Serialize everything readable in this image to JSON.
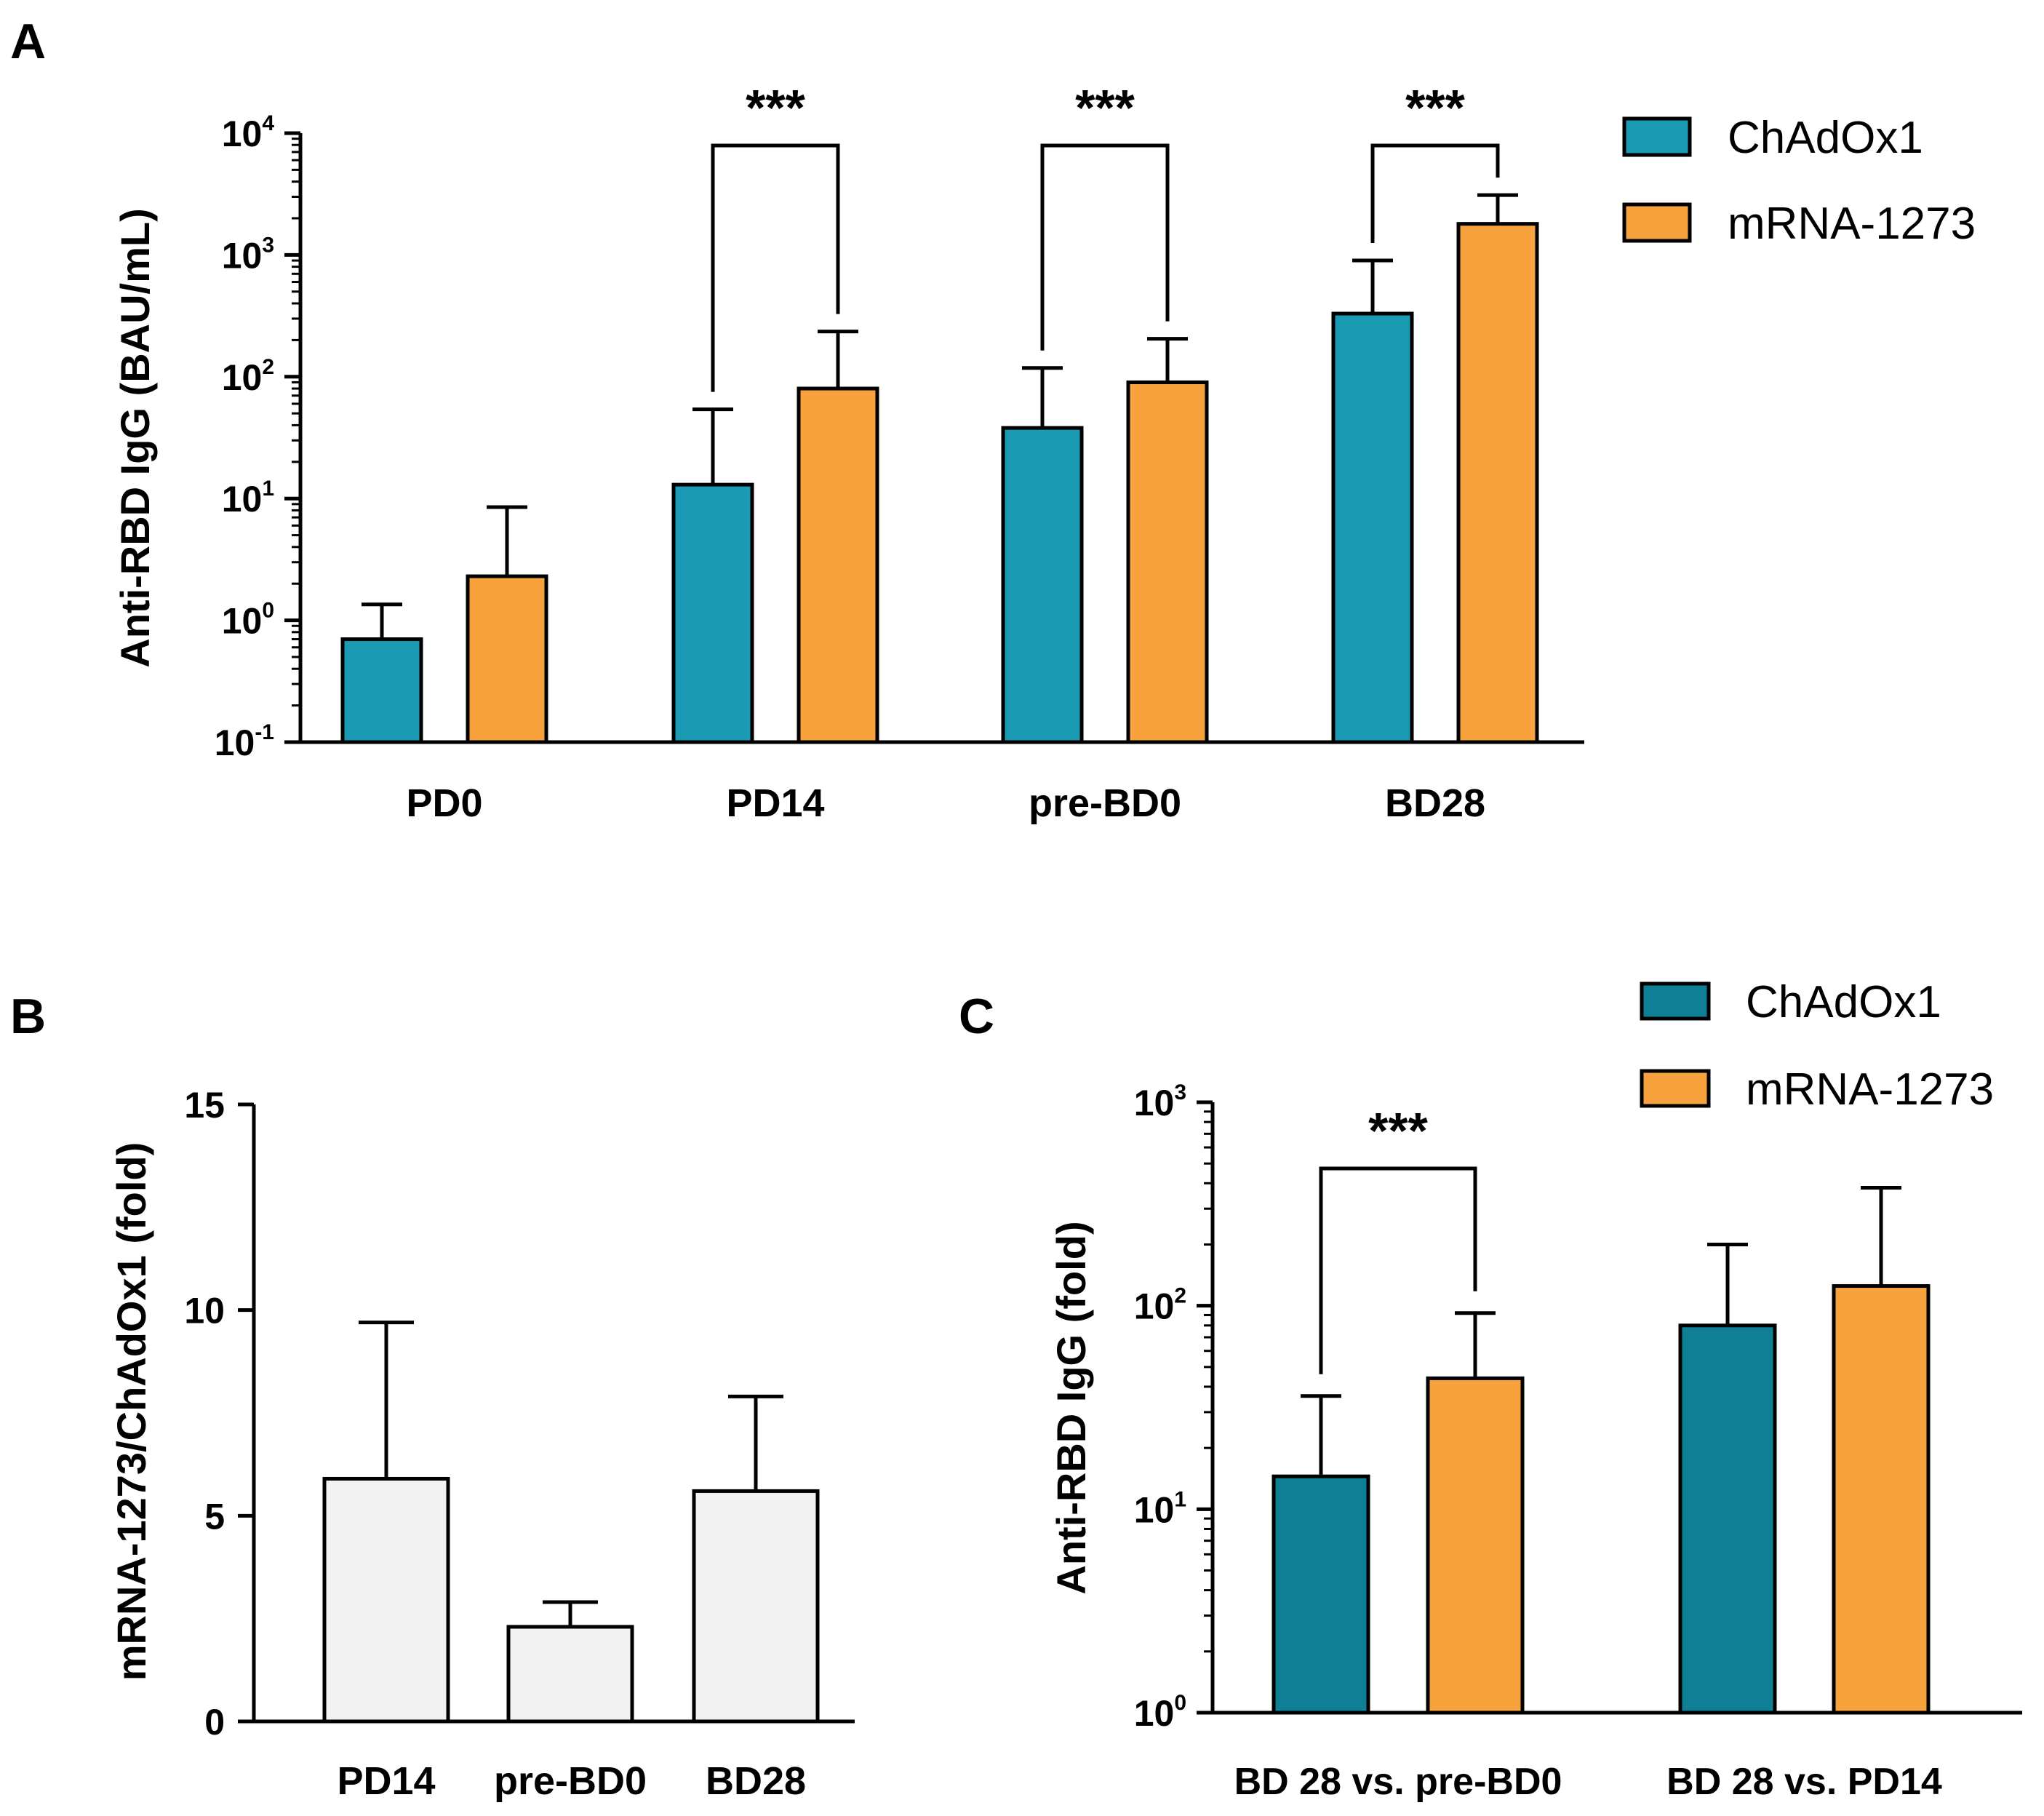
{
  "chart_data": [
    {
      "panel": "A",
      "type": "bar",
      "scale": "log",
      "ylabel": "Anti-RBD IgG (BAU/mL)",
      "ylim": [
        0.1,
        10000
      ],
      "yticks": [
        {
          "base": "10",
          "exp": "4",
          "value": 10000
        },
        {
          "base": "10",
          "exp": "3",
          "value": 1000
        },
        {
          "base": "10",
          "exp": "2",
          "value": 100
        },
        {
          "base": "10",
          "exp": "1",
          "value": 10
        },
        {
          "base": "10",
          "exp": "0",
          "value": 1
        },
        {
          "base": "10",
          "exp": "-1",
          "value": 0.1
        }
      ],
      "categories": [
        "PD0",
        "PD14",
        "pre-BD0",
        "BD28"
      ],
      "series": [
        {
          "name": "ChAdOx1",
          "color": "#1a9ab3",
          "values": [
            0.7,
            13,
            38,
            330
          ],
          "errors": [
            1.35,
            54,
            118,
            900
          ]
        },
        {
          "name": "mRNA-1273",
          "color": "#f8a23e",
          "values": [
            2.3,
            80,
            90,
            1800
          ],
          "errors": [
            8.5,
            235,
            205,
            3100
          ]
        }
      ],
      "significance": [
        {
          "category": "PD14",
          "label": "***"
        },
        {
          "category": "pre-BD0",
          "label": "***"
        },
        {
          "category": "BD28",
          "label": "***"
        }
      ],
      "legend": [
        {
          "label": "ChAdOx1",
          "color": "#1a9ab3"
        },
        {
          "label": "mRNA-1273",
          "color": "#f8a23e"
        }
      ]
    },
    {
      "panel": "B",
      "type": "bar",
      "scale": "linear",
      "ylabel": "mRNA-1273/ChAdOx1 (fold)",
      "ylim": [
        0,
        15
      ],
      "yticks": [
        "0",
        "5",
        "10",
        "15"
      ],
      "categories": [
        "PD14",
        "pre-BD0",
        "BD28"
      ],
      "series": [
        {
          "name": "mRNA-1273/ChAdOx1",
          "color": "#f2f2f2",
          "values": [
            5.9,
            2.3,
            5.6
          ],
          "errors": [
            9.7,
            2.9,
            7.9
          ]
        }
      ]
    },
    {
      "panel": "C",
      "type": "bar",
      "scale": "log",
      "ylabel": "Anti-RBD IgG (fold)",
      "ylim": [
        1,
        1000
      ],
      "yticks": [
        {
          "base": "10",
          "exp": "3",
          "value": 1000
        },
        {
          "base": "10",
          "exp": "2",
          "value": 100
        },
        {
          "base": "10",
          "exp": "1",
          "value": 10
        },
        {
          "base": "10",
          "exp": "0",
          "value": 1
        }
      ],
      "categories": [
        "BD 28 vs. pre-BD0",
        "BD 28 vs. PD14"
      ],
      "series": [
        {
          "name": "ChAdOx1",
          "color": "#0f7f96",
          "values": [
            14.5,
            80
          ],
          "errors": [
            36,
            200
          ]
        },
        {
          "name": "mRNA-1273",
          "color": "#f8a23e",
          "values": [
            44,
            125
          ],
          "errors": [
            92,
            380
          ]
        }
      ],
      "significance": [
        {
          "category": "BD 28 vs. pre-BD0",
          "label": "***"
        }
      ],
      "legend": [
        {
          "label": "ChAdOx1",
          "color": "#0f7f96"
        },
        {
          "label": "mRNA-1273",
          "color": "#f8a23e"
        }
      ]
    }
  ],
  "panels": [
    "A",
    "B",
    "C"
  ]
}
